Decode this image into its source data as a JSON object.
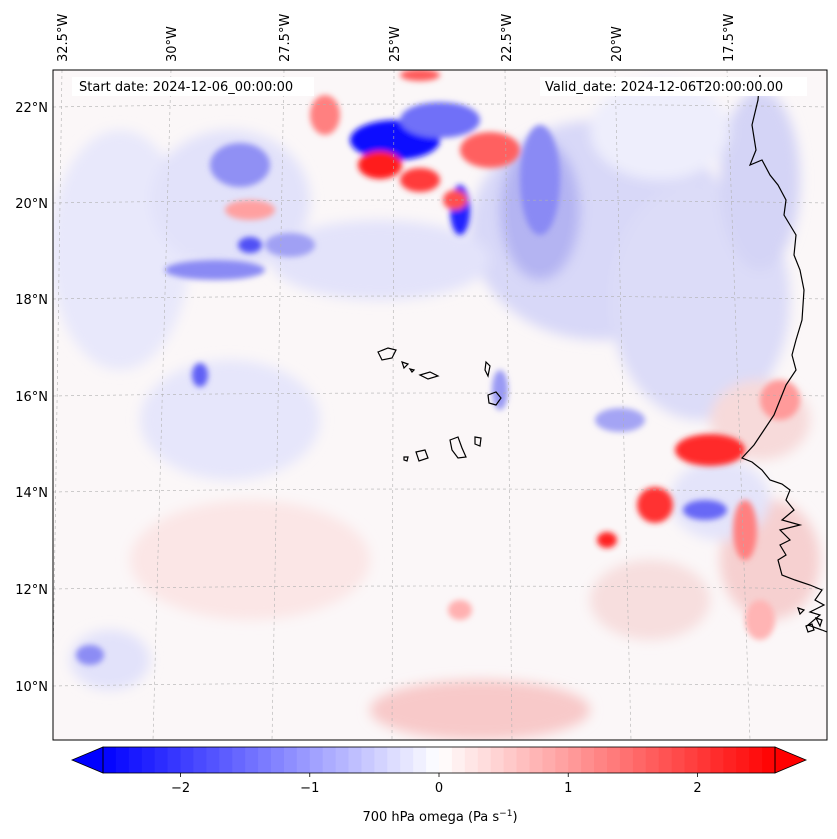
{
  "header": {
    "start_date": "Start date: 2024-12-06_00:00:00",
    "valid_date": "Valid_date: 2024-12-06T20:00:00.00"
  },
  "map": {
    "lon_labels": [
      "32.5°W",
      "30°W",
      "27.5°W",
      "25°W",
      "22.5°W",
      "20°W",
      "17.5°W"
    ],
    "lat_labels": [
      "22°N",
      "20°N",
      "18°N",
      "16°N",
      "14°N",
      "12°N",
      "10°N"
    ],
    "gridlines": "dashed",
    "colormap": "bwr",
    "negative_color": "#0000ff",
    "neutral_color": "#ffffff",
    "positive_color": "#ff0000",
    "coastline_color": "#000000"
  },
  "colorbar": {
    "label": "700 hPa omega (Pa s",
    "label_sup": "−1",
    "label_close": ")",
    "ticks": [
      "−2",
      "−1",
      "0",
      "1",
      "2"
    ],
    "tick_values": [
      -2,
      -1,
      0,
      1,
      2
    ],
    "vmin": -2.6,
    "vmax": 2.6,
    "extend": "both"
  }
}
